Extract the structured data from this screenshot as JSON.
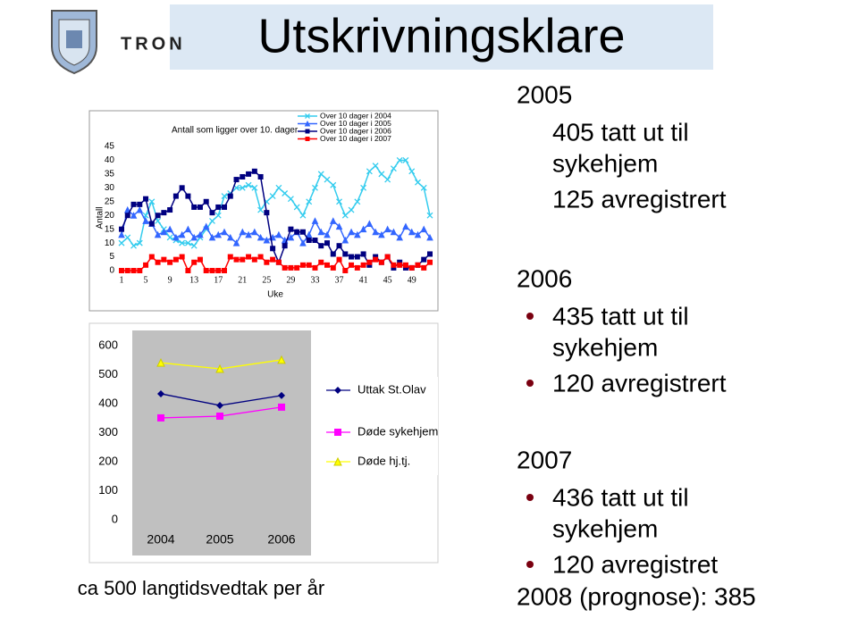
{
  "title": "Utskrivningsklare",
  "logo_text": "TRON",
  "chart_data": [
    {
      "type": "line",
      "title": "Antall som ligger over 10. dager",
      "x_label": "Uke",
      "y_label": "Antall",
      "x": [
        1,
        2,
        3,
        4,
        5,
        6,
        7,
        8,
        9,
        10,
        11,
        12,
        13,
        14,
        15,
        16,
        17,
        18,
        19,
        20,
        21,
        22,
        23,
        24,
        25,
        26,
        27,
        28,
        29,
        30,
        31,
        32,
        33,
        34,
        35,
        36,
        37,
        38,
        39,
        40,
        41,
        42,
        43,
        44,
        45,
        46,
        47,
        48,
        49,
        50,
        51,
        52
      ],
      "xlim": [
        1,
        52
      ],
      "xticks": [
        1,
        5,
        9,
        13,
        17,
        21,
        25,
        29,
        33,
        37,
        41,
        45,
        49
      ],
      "ylim": [
        0,
        45
      ],
      "yticks": [
        0,
        5,
        10,
        15,
        20,
        25,
        30,
        35,
        40,
        45
      ],
      "series": [
        {
          "name": "Over 10 dager i 2004",
          "color": "#33ccee",
          "marker": "x",
          "values": [
            10,
            12,
            9,
            10,
            20,
            25,
            18,
            15,
            12,
            11,
            10,
            10,
            9,
            12,
            15,
            18,
            20,
            27,
            28,
            30,
            30,
            31,
            30,
            22,
            25,
            27,
            30,
            28,
            26,
            23,
            20,
            25,
            30,
            35,
            33,
            31,
            25,
            20,
            22,
            25,
            30,
            36,
            38,
            35,
            33,
            37,
            40,
            40,
            36,
            32,
            30,
            20
          ]
        },
        {
          "name": "Over 10 dager i 2005",
          "color": "#3366ff",
          "marker": "triangle",
          "values": [
            13,
            22,
            20,
            22,
            18,
            17,
            13,
            14,
            15,
            12,
            13,
            15,
            12,
            13,
            16,
            12,
            13,
            14,
            12,
            10,
            14,
            13,
            14,
            12,
            11,
            12,
            13,
            11,
            12,
            14,
            10,
            13,
            18,
            14,
            13,
            18,
            16,
            11,
            14,
            13,
            15,
            17,
            14,
            13,
            15,
            14,
            12,
            16,
            14,
            13,
            15,
            12
          ]
        },
        {
          "name": "Over 10 dager i 2006",
          "color": "#000080",
          "marker": "square",
          "values": [
            15,
            20,
            24,
            24,
            26,
            17,
            20,
            21,
            22,
            27,
            30,
            27,
            23,
            23,
            25,
            21,
            23,
            23,
            27,
            33,
            34,
            35,
            36,
            34,
            21,
            8,
            3,
            9,
            15,
            14,
            14,
            11,
            11,
            9,
            10,
            6,
            9,
            6,
            5,
            5,
            6,
            2,
            5,
            3,
            5,
            1,
            3,
            1,
            1,
            2,
            4,
            6
          ]
        },
        {
          "name": "Over 10 dager i 2007",
          "color": "#ff0000",
          "marker": "square",
          "values": [
            0,
            0,
            0,
            0,
            2,
            5,
            3,
            4,
            3,
            4,
            5,
            0,
            3,
            4,
            0,
            0,
            0,
            0,
            5,
            4,
            4,
            5,
            4,
            5,
            3,
            4,
            3,
            1,
            1,
            1,
            2,
            2,
            1,
            3,
            2,
            1,
            4,
            0,
            2,
            1,
            2,
            3,
            4,
            3,
            5,
            2,
            2,
            2,
            1,
            2,
            1,
            3
          ]
        }
      ]
    },
    {
      "type": "line",
      "categories": [
        "2004",
        "2005",
        "2006"
      ],
      "ylim": [
        0,
        600
      ],
      "yticks": [
        0,
        100,
        200,
        300,
        400,
        500,
        600
      ],
      "series": [
        {
          "name": "Uttak St.Olav",
          "color": "#000080",
          "marker": "diamond",
          "values": [
            434,
            394,
            428
          ]
        },
        {
          "name": "Døde sykehjem",
          "color": "#ff00ff",
          "marker": "square",
          "values": [
            351,
            357,
            388
          ]
        },
        {
          "name": "Døde hj.tj.",
          "color": "#ffff00",
          "marker": "triangle",
          "values": [
            541,
            520,
            551
          ]
        }
      ]
    }
  ],
  "footer": "ca 500 langtidsvedtak per år",
  "notes": [
    {
      "year": "2005",
      "bullets": false,
      "items": [
        [
          "405 tatt ut til",
          "sykehjem"
        ],
        [
          "125 avregistrert"
        ]
      ]
    },
    {
      "year": "2006",
      "bullets": true,
      "items": [
        [
          "435 tatt ut til",
          "sykehjem"
        ],
        [
          "120 avregistrert"
        ]
      ]
    },
    {
      "year": "2007",
      "bullets": true,
      "items": [
        [
          "436 tatt ut til",
          "sykehjem"
        ],
        [
          "120 avregistret"
        ]
      ]
    }
  ],
  "prognosis": "2008 (prognose): 385"
}
